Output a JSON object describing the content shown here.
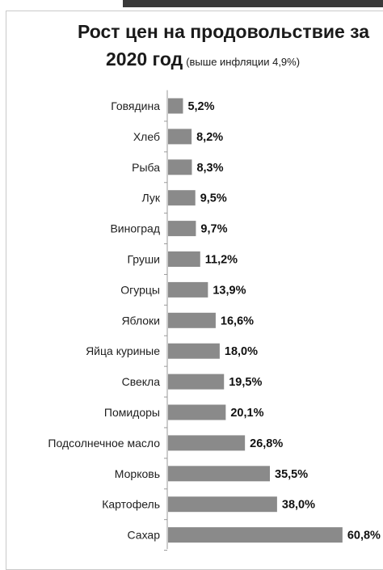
{
  "chart_data": {
    "type": "bar",
    "orientation": "horizontal",
    "title": "Рост цен на продовольствие за",
    "title_line2": "2020 год",
    "subtitle": "(выше инфляции 4,9%)",
    "categories": [
      "Говядина",
      "Хлеб",
      "Рыба",
      "Лук",
      "Виноград",
      "Груши",
      "Огурцы",
      "Яблоки",
      "Яйца куриные",
      "Свекла",
      "Помидоры",
      "Подсолнечное масло",
      "Морковь",
      "Картофель",
      "Сахар"
    ],
    "values": [
      5.2,
      8.2,
      8.3,
      9.5,
      9.7,
      11.2,
      13.9,
      16.6,
      18.0,
      19.5,
      20.1,
      26.8,
      35.5,
      38.0,
      60.8
    ],
    "value_labels": [
      "5,2%",
      "8,2%",
      "8,3%",
      "9,5%",
      "9,7%",
      "11,2%",
      "13,9%",
      "16,6%",
      "18,0%",
      "19,5%",
      "20,1%",
      "26,8%",
      "35,5%",
      "38,0%",
      "60,8%"
    ],
    "bar_color": "#8a8a8a",
    "grid": false,
    "legend": "none"
  }
}
